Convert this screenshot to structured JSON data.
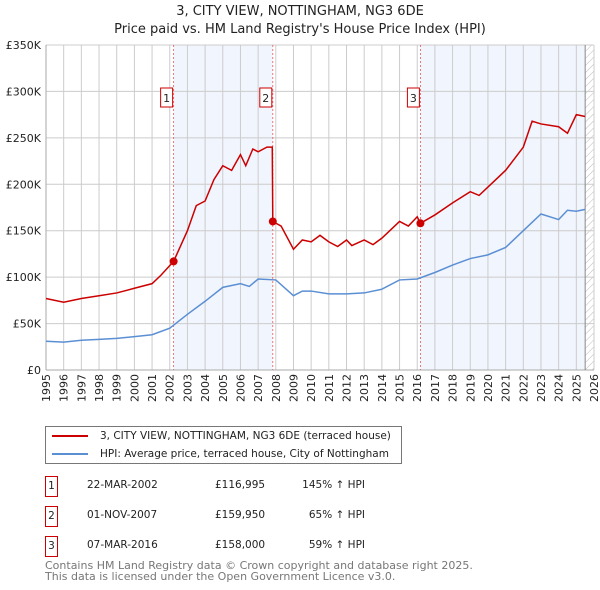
{
  "chart_data": {
    "type": "line",
    "title": "3, CITY VIEW, NOTTINGHAM, NG3 6DE",
    "subtitle": "Price paid vs. HM Land Registry's House Price Index (HPI)",
    "xlim": [
      1995,
      2026
    ],
    "ylim": [
      0,
      350000
    ],
    "yticks": [
      {
        "v": 0,
        "label": "£0"
      },
      {
        "v": 50000,
        "label": "£50K"
      },
      {
        "v": 100000,
        "label": "£100K"
      },
      {
        "v": 150000,
        "label": "£150K"
      },
      {
        "v": 200000,
        "label": "£200K"
      },
      {
        "v": 250000,
        "label": "£250K"
      },
      {
        "v": 300000,
        "label": "£300K"
      },
      {
        "v": 350000,
        "label": "£350K"
      }
    ],
    "xticks": [
      "1995",
      "1996",
      "1997",
      "1998",
      "1999",
      "2000",
      "2001",
      "2002",
      "2003",
      "2004",
      "2005",
      "2006",
      "2007",
      "2008",
      "2009",
      "2010",
      "2011",
      "2012",
      "2013",
      "2014",
      "2015",
      "2016",
      "2017",
      "2018",
      "2019",
      "2020",
      "2021",
      "2022",
      "2023",
      "2024",
      "2025",
      "2026"
    ],
    "grid": true,
    "series": [
      {
        "name": "3, CITY VIEW, NOTTINGHAM, NG3 6DE (terraced house)",
        "color": "#cc0000",
        "x": [
          1995,
          1996,
          1997,
          1998,
          1999,
          2000,
          2001,
          2001.5,
          2002.22,
          2003,
          2003.5,
          2004,
          2004.5,
          2005,
          2005.5,
          2006,
          2006.3,
          2006.7,
          2007,
          2007.5,
          2007.8,
          2007.83,
          2008.3,
          2009,
          2009.5,
          2010,
          2010.5,
          2011,
          2011.5,
          2012,
          2012.3,
          2013,
          2013.5,
          2014,
          2015,
          2015.5,
          2016,
          2016.18,
          2017,
          2018,
          2019,
          2019.5,
          2020,
          2021,
          2022,
          2022.5,
          2023,
          2024,
          2024.5,
          2025,
          2025.5
        ],
        "y": [
          77000,
          73000,
          77000,
          80000,
          83000,
          88000,
          93000,
          102000,
          116995,
          150000,
          177000,
          182000,
          205000,
          220000,
          215000,
          232000,
          220000,
          238000,
          235000,
          240000,
          240000,
          159950,
          155000,
          130000,
          140000,
          138000,
          145000,
          138000,
          133000,
          140000,
          134000,
          140000,
          135000,
          142000,
          160000,
          155000,
          165000,
          158000,
          167000,
          180000,
          192000,
          188000,
          197000,
          215000,
          240000,
          268000,
          265000,
          262000,
          255000,
          275000,
          273000
        ]
      },
      {
        "name": "HPI: Average price, terraced house, City of Nottingham",
        "color": "#5b8fd4",
        "x": [
          1995,
          1996,
          1997,
          1998,
          1999,
          2000,
          2001,
          2002,
          2003,
          2004,
          2005,
          2006,
          2006.5,
          2007,
          2008,
          2009,
          2009.5,
          2010,
          2011,
          2012,
          2013,
          2014,
          2015,
          2016,
          2017,
          2018,
          2019,
          2020,
          2021,
          2022,
          2023,
          2024,
          2024.5,
          2025,
          2025.5
        ],
        "y": [
          31000,
          30000,
          32000,
          33000,
          34000,
          36000,
          38000,
          45000,
          60000,
          74000,
          89000,
          93000,
          90000,
          98000,
          97000,
          80000,
          85000,
          85000,
          82000,
          82000,
          83000,
          87000,
          97000,
          98000,
          105000,
          113000,
          120000,
          124000,
          132000,
          150000,
          168000,
          162000,
          172000,
          171000,
          173000
        ]
      }
    ],
    "sales": [
      {
        "n": "1",
        "x": 2002.22,
        "y": 116995,
        "date": "22-MAR-2002",
        "price": "£116,995",
        "hpi": "145% ↑ HPI"
      },
      {
        "n": "2",
        "x": 2007.83,
        "y": 159950,
        "date": "01-NOV-2007",
        "price": "£159,950",
        "hpi": "65% ↑ HPI"
      },
      {
        "n": "3",
        "x": 2016.18,
        "y": 158000,
        "date": "07-MAR-2016",
        "price": "£158,000",
        "hpi": "59% ↑ HPI"
      }
    ],
    "shaded": [
      [
        2002.22,
        2007.83
      ],
      [
        2016.18,
        2025.5
      ]
    ],
    "forecast_from": 2025.5
  },
  "footer": [
    "Contains HM Land Registry data © Crown copyright and database right 2025.",
    "This data is licensed under the Open Government Licence v3.0."
  ]
}
